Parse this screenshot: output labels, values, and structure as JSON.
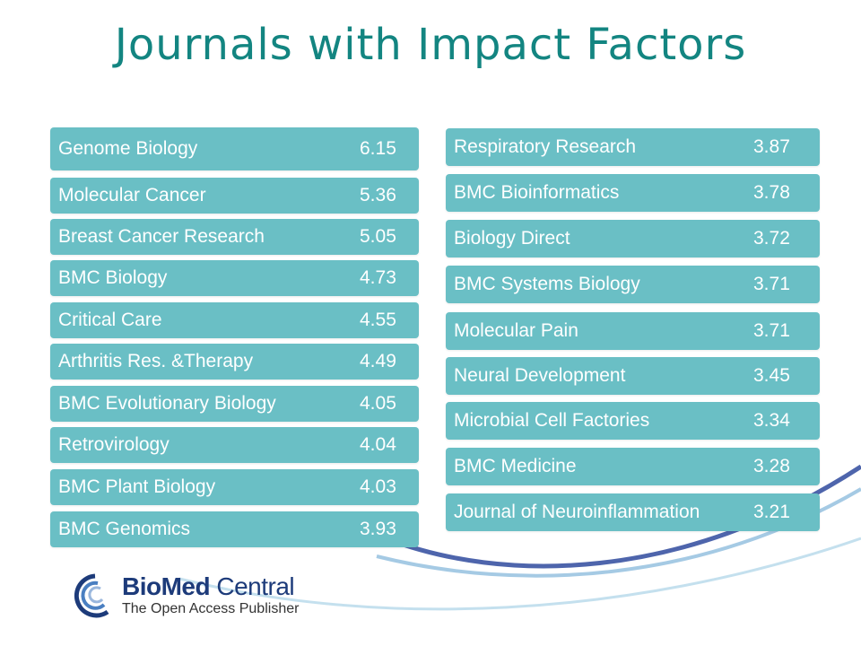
{
  "slide": {
    "title": "Journals with Impact Factors",
    "accent_color": "#138581",
    "row_color": "#6abfc5"
  },
  "left_list": [
    {
      "name": "Genome Biology",
      "value": "6.15"
    },
    {
      "name": "Molecular Cancer",
      "value": "5.36"
    },
    {
      "name": "Breast Cancer Research",
      "value": "5.05"
    },
    {
      "name": "BMC Biology",
      "value": "4.73"
    },
    {
      "name": "Critical Care",
      "value": "4.55"
    },
    {
      "name": "Arthritis Res. &Therapy",
      "value": "4.49"
    },
    {
      "name": "BMC Evolutionary Biology",
      "value": "4.05"
    },
    {
      "name": "Retrovirology",
      "value": "4.04"
    },
    {
      "name": "BMC Plant Biology",
      "value": "4.03"
    },
    {
      "name": "BMC Genomics",
      "value": "3.93"
    }
  ],
  "right_list": [
    {
      "name": "Respiratory Research",
      "value": "3.87"
    },
    {
      "name": "BMC Bioinformatics",
      "value": "3.78"
    },
    {
      "name": "Biology Direct",
      "value": "3.72"
    },
    {
      "name": "BMC Systems Biology",
      "value": "3.71"
    },
    {
      "name": "Molecular Pain",
      "value": "3.71"
    },
    {
      "name": "Neural Development",
      "value": "3.45"
    },
    {
      "name": "Microbial Cell Factories",
      "value": "3.34"
    },
    {
      "name": "BMC Medicine",
      "value": "3.28"
    },
    {
      "name": "Journal of Neuroinflammation",
      "value": "3.21"
    }
  ],
  "logo": {
    "brand_bold": "BioMed",
    "brand_regular": " Central",
    "tagline": "The Open Access Publisher",
    "icon": "biomed-central-logo-icon"
  }
}
